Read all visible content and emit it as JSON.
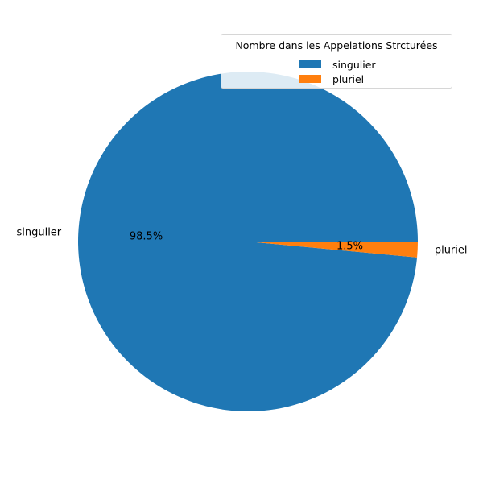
{
  "chart_data": {
    "type": "pie",
    "categories": [
      "singulier",
      "pluriel"
    ],
    "values": [
      98.5,
      1.5
    ],
    "percent_labels": [
      "98.5%",
      "1.5%"
    ],
    "colors": [
      "#1f77b4",
      "#ff7f0e"
    ],
    "legend": {
      "title": "Nombre dans les Appelations Strcturées",
      "placement": "top-right",
      "entries": [
        "singulier",
        "pluriel"
      ]
    }
  }
}
